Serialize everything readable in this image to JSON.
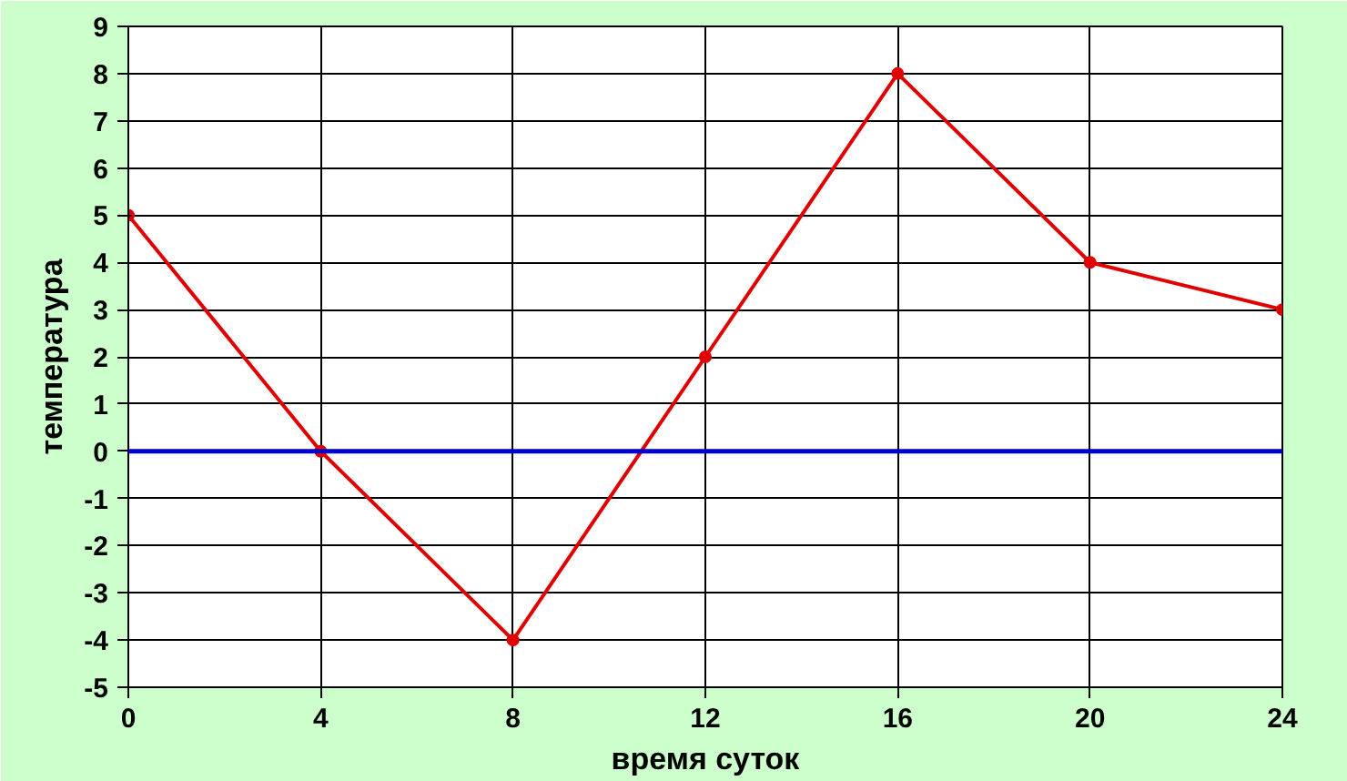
{
  "chart_data": {
    "type": "line",
    "xlabel": "время суток",
    "ylabel": "температура",
    "x": [
      0,
      4,
      8,
      12,
      16,
      20,
      24
    ],
    "series": [
      {
        "color": "#e00000",
        "values": [
          5,
          0,
          -4,
          2,
          8,
          4,
          3
        ]
      }
    ],
    "xlim": [
      0,
      24
    ],
    "xticks": [
      0,
      4,
      8,
      12,
      16,
      20,
      24
    ],
    "ylim": [
      -5,
      9
    ],
    "yticks": [
      -5,
      -4,
      -3,
      -2,
      -1,
      0,
      1,
      2,
      3,
      4,
      5,
      6,
      7,
      8,
      9
    ],
    "ref_lines": [
      {
        "axis": "y",
        "value": 0,
        "color": "#0000cc"
      }
    ],
    "grid": true,
    "marker": "circle",
    "line_style": "solid"
  }
}
